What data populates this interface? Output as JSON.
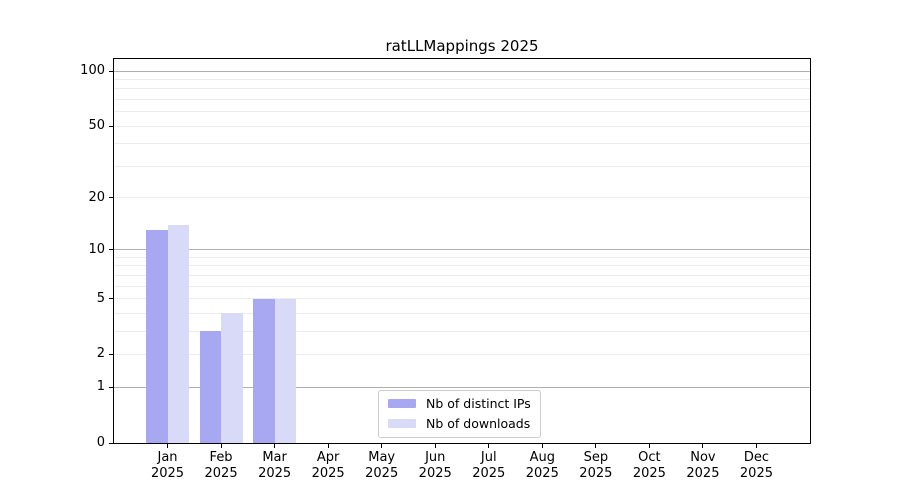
{
  "figure": {
    "background": "#ffffff",
    "spine_color": "#000000"
  },
  "chart_data": {
    "type": "bar",
    "title": "ratLLMappings 2025",
    "xlabel": "",
    "ylabel": "",
    "yscale": "log(1+x)",
    "yticks": [
      0,
      1,
      2,
      5,
      10,
      20,
      50,
      100
    ],
    "ylim": [
      0,
      120
    ],
    "months": [
      "Jan",
      "Feb",
      "Mar",
      "Apr",
      "May",
      "Jun",
      "Jul",
      "Aug",
      "Sep",
      "Oct",
      "Nov",
      "Dec"
    ],
    "year": "2025",
    "categories": [
      "Jan 2025",
      "Feb 2025",
      "Mar 2025",
      "Apr 2025",
      "May 2025",
      "Jun 2025",
      "Jul 2025",
      "Aug 2025",
      "Sep 2025",
      "Oct 2025",
      "Nov 2025",
      "Dec 2025"
    ],
    "series": [
      {
        "name": "Nb of distinct IPs",
        "color": "#a8a8f2",
        "values": [
          13,
          3,
          5,
          0,
          0,
          0,
          0,
          0,
          0,
          0,
          0,
          0
        ]
      },
      {
        "name": "Nb of downloads",
        "color": "#d9d9f8",
        "values": [
          14,
          4,
          5,
          0,
          0,
          0,
          0,
          0,
          0,
          0,
          0,
          0
        ]
      }
    ],
    "grid": {
      "major_values": [
        1,
        10,
        100
      ],
      "minor_values": [
        2,
        3,
        4,
        5,
        6,
        7,
        8,
        9,
        20,
        30,
        40,
        50,
        60,
        70,
        80,
        90
      ],
      "major_color": "#b0b0b0",
      "minor_color": "#ececec"
    },
    "legend_position": "lower center"
  }
}
